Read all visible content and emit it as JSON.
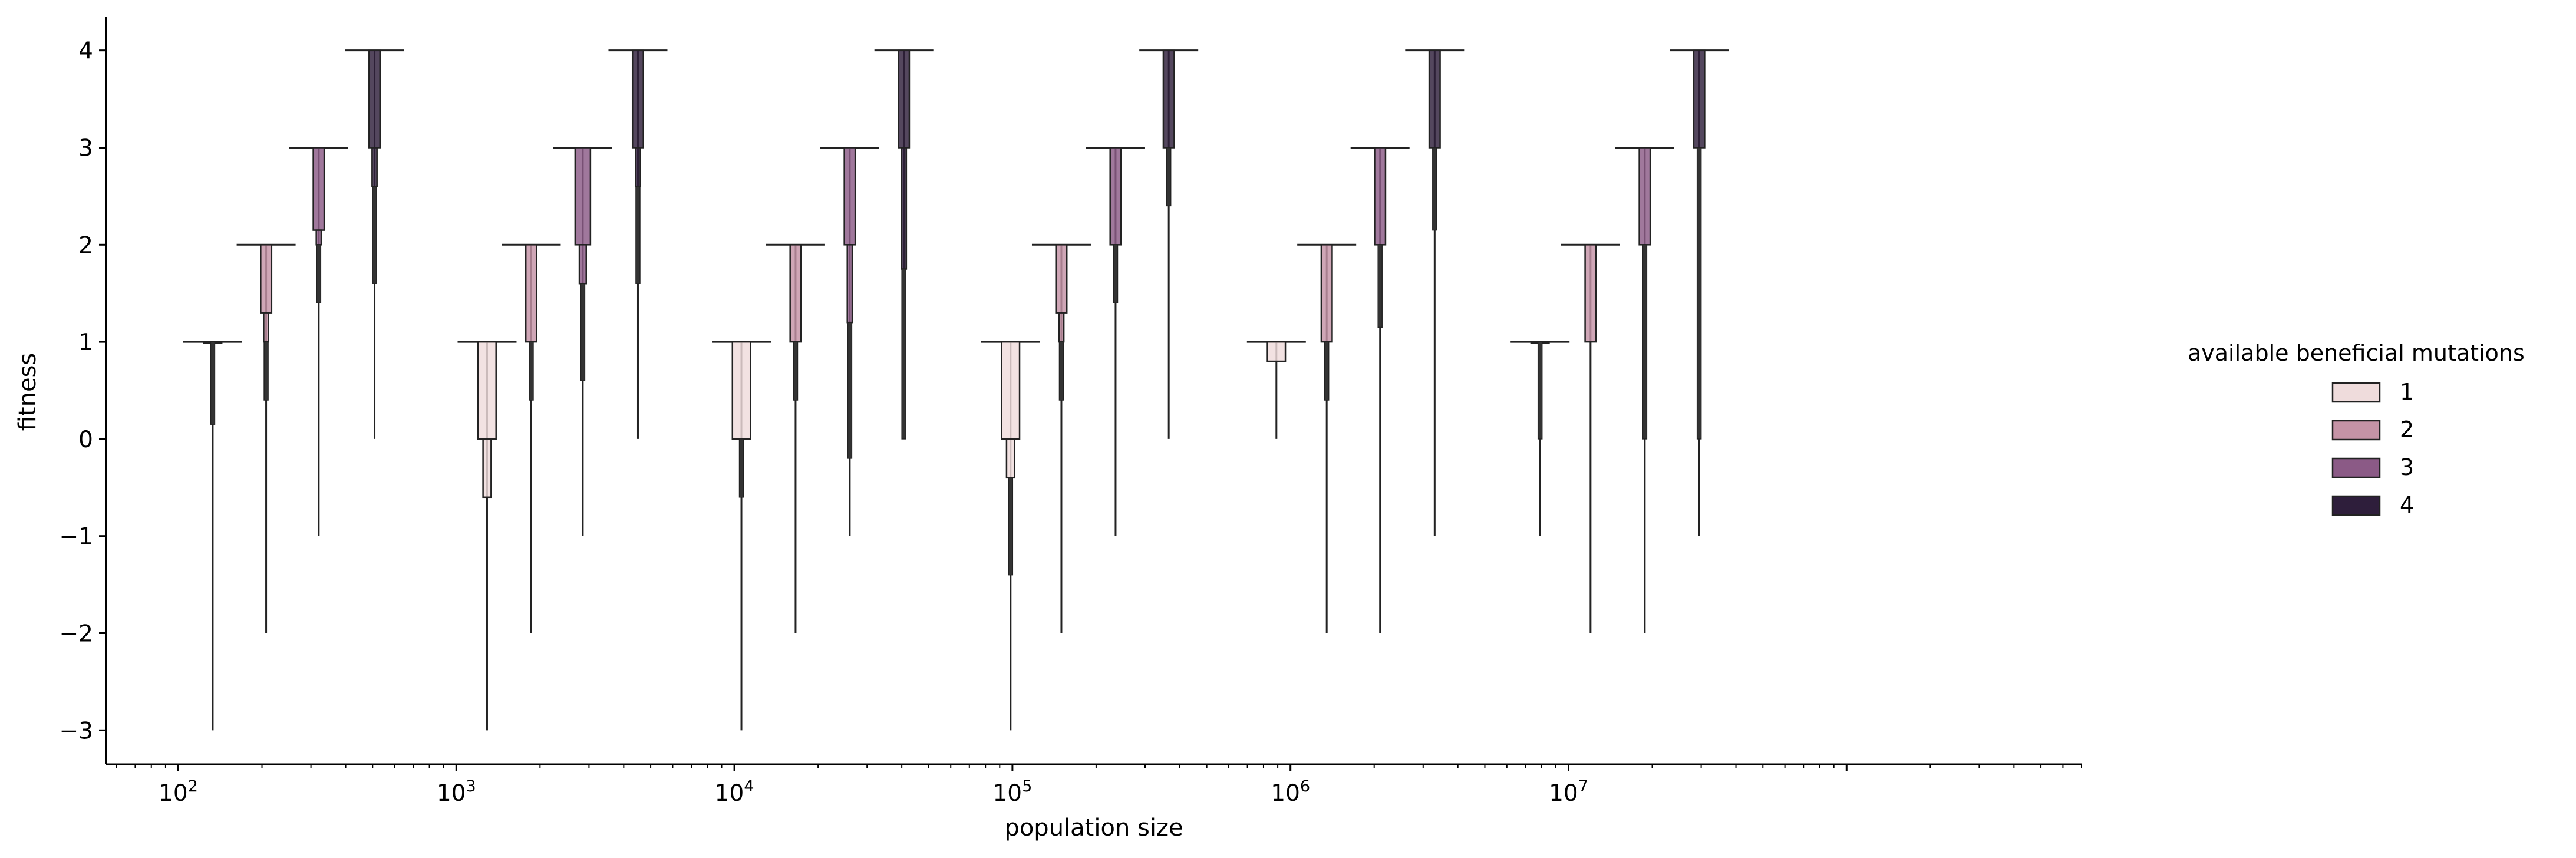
{
  "chart_data": {
    "type": "boxen",
    "xlabel": "population size",
    "ylabel": "fitness",
    "xscale": "log",
    "xlim": [
      55,
      700000000
    ],
    "ylim": [
      -3.35,
      4.35
    ],
    "x_tick_labels": [
      {
        "base": "10",
        "exp": "2"
      },
      {
        "base": "10",
        "exp": "3"
      },
      {
        "base": "10",
        "exp": "4"
      },
      {
        "base": "10",
        "exp": "5"
      },
      {
        "base": "10",
        "exp": "6"
      },
      {
        "base": "10",
        "exp": "7"
      }
    ],
    "y_ticks": [
      -3,
      -2,
      -1,
      0,
      1,
      2,
      3,
      4
    ],
    "y_tick_labels": [
      "−3",
      "−2",
      "−1",
      "0",
      "1",
      "2",
      "3",
      "4"
    ],
    "grid": false,
    "legend_placement": "right",
    "legend_title": "available beneficial mutations",
    "legend": [
      {
        "label": "1",
        "color": "#efdcdc"
      },
      {
        "label": "2",
        "color": "#c593a6"
      },
      {
        "label": "3",
        "color": "#8b5a86"
      },
      {
        "label": "4",
        "color": "#2e1e3b"
      }
    ],
    "series_colors": {
      "1": "#efdcdc",
      "2": "#c593a6",
      "3": "#8b5a86",
      "4": "#2e1e3b"
    },
    "groups": [
      {
        "population": 100,
        "boxes": [
          {
            "mutations": 1,
            "x": 133,
            "top": 1,
            "box_low": 1,
            "tail_low": 0.15,
            "min": -3,
            "box_fill": 0.95
          },
          {
            "mutations": 2,
            "x": 207,
            "top": 2,
            "box_low": 1.3,
            "box_mid": 1.0,
            "tail_low": 0.4,
            "min": -2,
            "box_fill": 0.55
          },
          {
            "mutations": 3,
            "x": 320,
            "top": 3,
            "box_low": 2.15,
            "box_mid": 2.0,
            "tail_low": 1.4,
            "min": -1,
            "box_fill": 0.55
          },
          {
            "mutations": 4,
            "x": 508,
            "top": 4,
            "box_low": 3.0,
            "box_mid": 2.6,
            "tail_low": 1.6,
            "min": 0,
            "box_fill": 0.55
          }
        ]
      },
      {
        "population": 1000,
        "boxes": [
          {
            "mutations": 1,
            "x": 1290,
            "top": 1,
            "box_low": 0.0,
            "box_mid": -0.6,
            "tail_low": -0.6,
            "min": -3,
            "box_fill": 0.95
          },
          {
            "mutations": 2,
            "x": 1860,
            "top": 2,
            "box_low": 1.0,
            "tail_low": 0.4,
            "min": -2,
            "box_fill": 0.55
          },
          {
            "mutations": 3,
            "x": 2850,
            "top": 3,
            "box_low": 2.0,
            "box_mid": 1.6,
            "tail_low": 0.6,
            "min": -1,
            "box_fill": 0.8
          },
          {
            "mutations": 4,
            "x": 4500,
            "top": 4,
            "box_low": 3.0,
            "box_mid": 2.6,
            "tail_low": 1.6,
            "min": 0,
            "box_fill": 0.55
          }
        ]
      },
      {
        "population": 10000,
        "boxes": [
          {
            "mutations": 1,
            "x": 10600,
            "top": 1,
            "box_low": 0.0,
            "tail_low": -0.6,
            "min": -3,
            "box_fill": 0.95
          },
          {
            "mutations": 2,
            "x": 16600,
            "top": 2,
            "box_low": 1.0,
            "tail_low": 0.4,
            "min": -2,
            "box_fill": 0.55
          },
          {
            "mutations": 3,
            "x": 26000,
            "top": 3,
            "box_low": 2.0,
            "box_mid": 1.2,
            "tail_low": -0.2,
            "min": -1,
            "box_fill": 0.55
          },
          {
            "mutations": 4,
            "x": 40700,
            "top": 4,
            "box_low": 3.0,
            "box_mid": 1.75,
            "tail_low": 0.0,
            "min": 0,
            "box_fill": 0.55
          }
        ]
      },
      {
        "population": 100000,
        "boxes": [
          {
            "mutations": 1,
            "x": 98500,
            "top": 1,
            "box_low": 0.0,
            "box_mid": -0.4,
            "tail_low": -1.4,
            "min": -3,
            "box_fill": 0.95
          },
          {
            "mutations": 2,
            "x": 150000,
            "top": 2,
            "box_low": 1.3,
            "box_mid": 1.0,
            "tail_low": 0.4,
            "min": -2,
            "box_fill": 0.55
          },
          {
            "mutations": 3,
            "x": 235000,
            "top": 3,
            "box_low": 2.0,
            "tail_low": 1.4,
            "min": -1,
            "box_fill": 0.55
          },
          {
            "mutations": 4,
            "x": 365000,
            "top": 4,
            "box_low": 3.0,
            "tail_low": 2.4,
            "min": 0,
            "box_fill": 0.55
          }
        ]
      },
      {
        "population": 1000000,
        "boxes": [
          {
            "mutations": 1,
            "x": 890000,
            "top": 1,
            "box_low": 0.8,
            "tail_low": 0.8,
            "min": 0,
            "box_fill": 0.95
          },
          {
            "mutations": 2,
            "x": 1350000,
            "top": 2,
            "box_low": 1.0,
            "tail_low": 0.4,
            "min": -2,
            "box_fill": 0.55
          },
          {
            "mutations": 3,
            "x": 2100000,
            "top": 3,
            "box_low": 2.0,
            "tail_low": 1.15,
            "min": -2,
            "box_fill": 0.55
          },
          {
            "mutations": 4,
            "x": 3300000,
            "top": 4,
            "box_low": 3.0,
            "tail_low": 2.15,
            "min": -1,
            "box_fill": 0.55
          }
        ]
      },
      {
        "population": 10000000,
        "boxes": [
          {
            "mutations": 1,
            "x": 7900000,
            "top": 1,
            "box_low": 1.0,
            "tail_low": 0.0,
            "min": -1,
            "box_fill": 0.95
          },
          {
            "mutations": 2,
            "x": 12000000,
            "top": 2,
            "box_low": 1.0,
            "tail_low": 1.0,
            "min": -2,
            "box_fill": 0.55
          },
          {
            "mutations": 3,
            "x": 18800000,
            "top": 3,
            "box_low": 2.0,
            "tail_low": 0.0,
            "min": -2,
            "box_fill": 0.55
          },
          {
            "mutations": 4,
            "x": 29500000,
            "top": 4,
            "box_low": 3.0,
            "tail_low": 0.0,
            "min": -1,
            "box_fill": 0.55
          }
        ]
      }
    ]
  }
}
